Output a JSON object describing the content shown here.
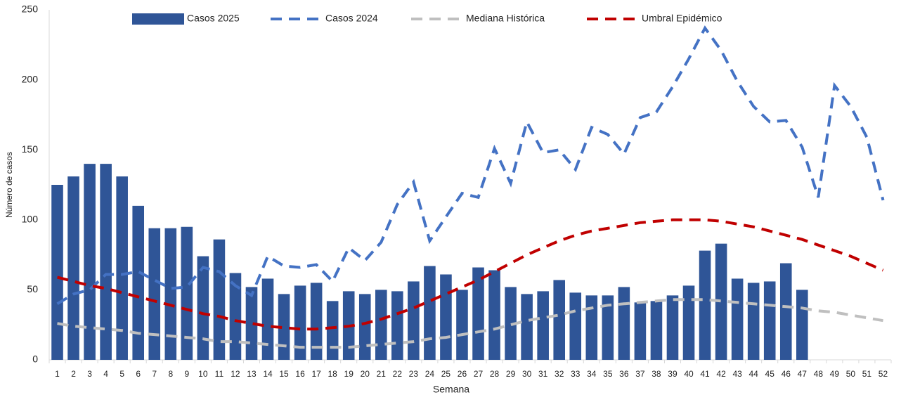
{
  "chart_data": {
    "type": "bar",
    "y_label": "Número de casos",
    "x_label": "Semana",
    "categories": [
      "1",
      "2",
      "3",
      "4",
      "5",
      "6",
      "7",
      "8",
      "9",
      "10",
      "11",
      "12",
      "13",
      "14",
      "15",
      "16",
      "17",
      "18",
      "19",
      "20",
      "21",
      "22",
      "23",
      "24",
      "25",
      "26",
      "27",
      "28",
      "29",
      "30",
      "31",
      "32",
      "33",
      "34",
      "35",
      "36",
      "37",
      "38",
      "39",
      "40",
      "41",
      "42",
      "43",
      "44",
      "45",
      "46",
      "47",
      "48",
      "49",
      "50",
      "51",
      "52"
    ],
    "series": [
      {
        "name": "Casos 2025",
        "type": "bar",
        "color": "#2f5597",
        "values": [
          125,
          131,
          140,
          140,
          131,
          110,
          94,
          94,
          95,
          74,
          86,
          62,
          52,
          58,
          47,
          53,
          55,
          42,
          49,
          47,
          50,
          49,
          56,
          67,
          61,
          50,
          66,
          64,
          52,
          47,
          49,
          57,
          48,
          46,
          46,
          52,
          41,
          42,
          46,
          53,
          78,
          83,
          58,
          55,
          56,
          69,
          50,
          null,
          null,
          null,
          null,
          null
        ]
      },
      {
        "name": "Casos 2024",
        "type": "line",
        "dashed": true,
        "color": "#4472c4",
        "values": [
          40,
          47,
          50,
          61,
          61,
          63,
          57,
          51,
          52,
          66,
          63,
          53,
          46,
          74,
          67,
          66,
          68,
          56,
          80,
          71,
          84,
          111,
          127,
          85,
          102,
          119,
          116,
          151,
          126,
          170,
          148,
          150,
          136,
          166,
          161,
          147,
          173,
          177,
          195,
          215,
          237,
          221,
          199,
          181,
          170,
          171,
          152,
          116,
          196,
          181,
          159,
          114
        ]
      },
      {
        "name": "Mediana Histórica",
        "type": "line",
        "dashed": true,
        "color": "#bfbfbf",
        "values": [
          26,
          24,
          23,
          22,
          21,
          19,
          18,
          17,
          16,
          15,
          13,
          13,
          12,
          11,
          10,
          9,
          9,
          9,
          9,
          10,
          11,
          12,
          13,
          15,
          16,
          18,
          20,
          22,
          25,
          28,
          30,
          32,
          35,
          37,
          39,
          40,
          41,
          42,
          43,
          43,
          43,
          42,
          41,
          40,
          39,
          38,
          37,
          35,
          34,
          32,
          30,
          28
        ]
      },
      {
        "name": "Umbral Epidémico",
        "type": "line",
        "dashed": true,
        "color": "#c00000",
        "values": [
          59,
          56,
          53,
          51,
          48,
          45,
          42,
          39,
          36,
          33,
          31,
          28,
          26,
          24,
          23,
          22,
          22,
          23,
          24,
          26,
          29,
          33,
          37,
          42,
          47,
          52,
          57,
          63,
          69,
          75,
          80,
          85,
          89,
          92,
          94,
          96,
          98,
          99,
          100,
          100,
          100,
          99,
          97,
          95,
          92,
          89,
          86,
          82,
          78,
          74,
          69,
          64
        ]
      }
    ],
    "ylim": [
      0,
      250
    ],
    "yticks": [
      0,
      50,
      100,
      150,
      200,
      250
    ],
    "grid": false,
    "legend": "top"
  }
}
